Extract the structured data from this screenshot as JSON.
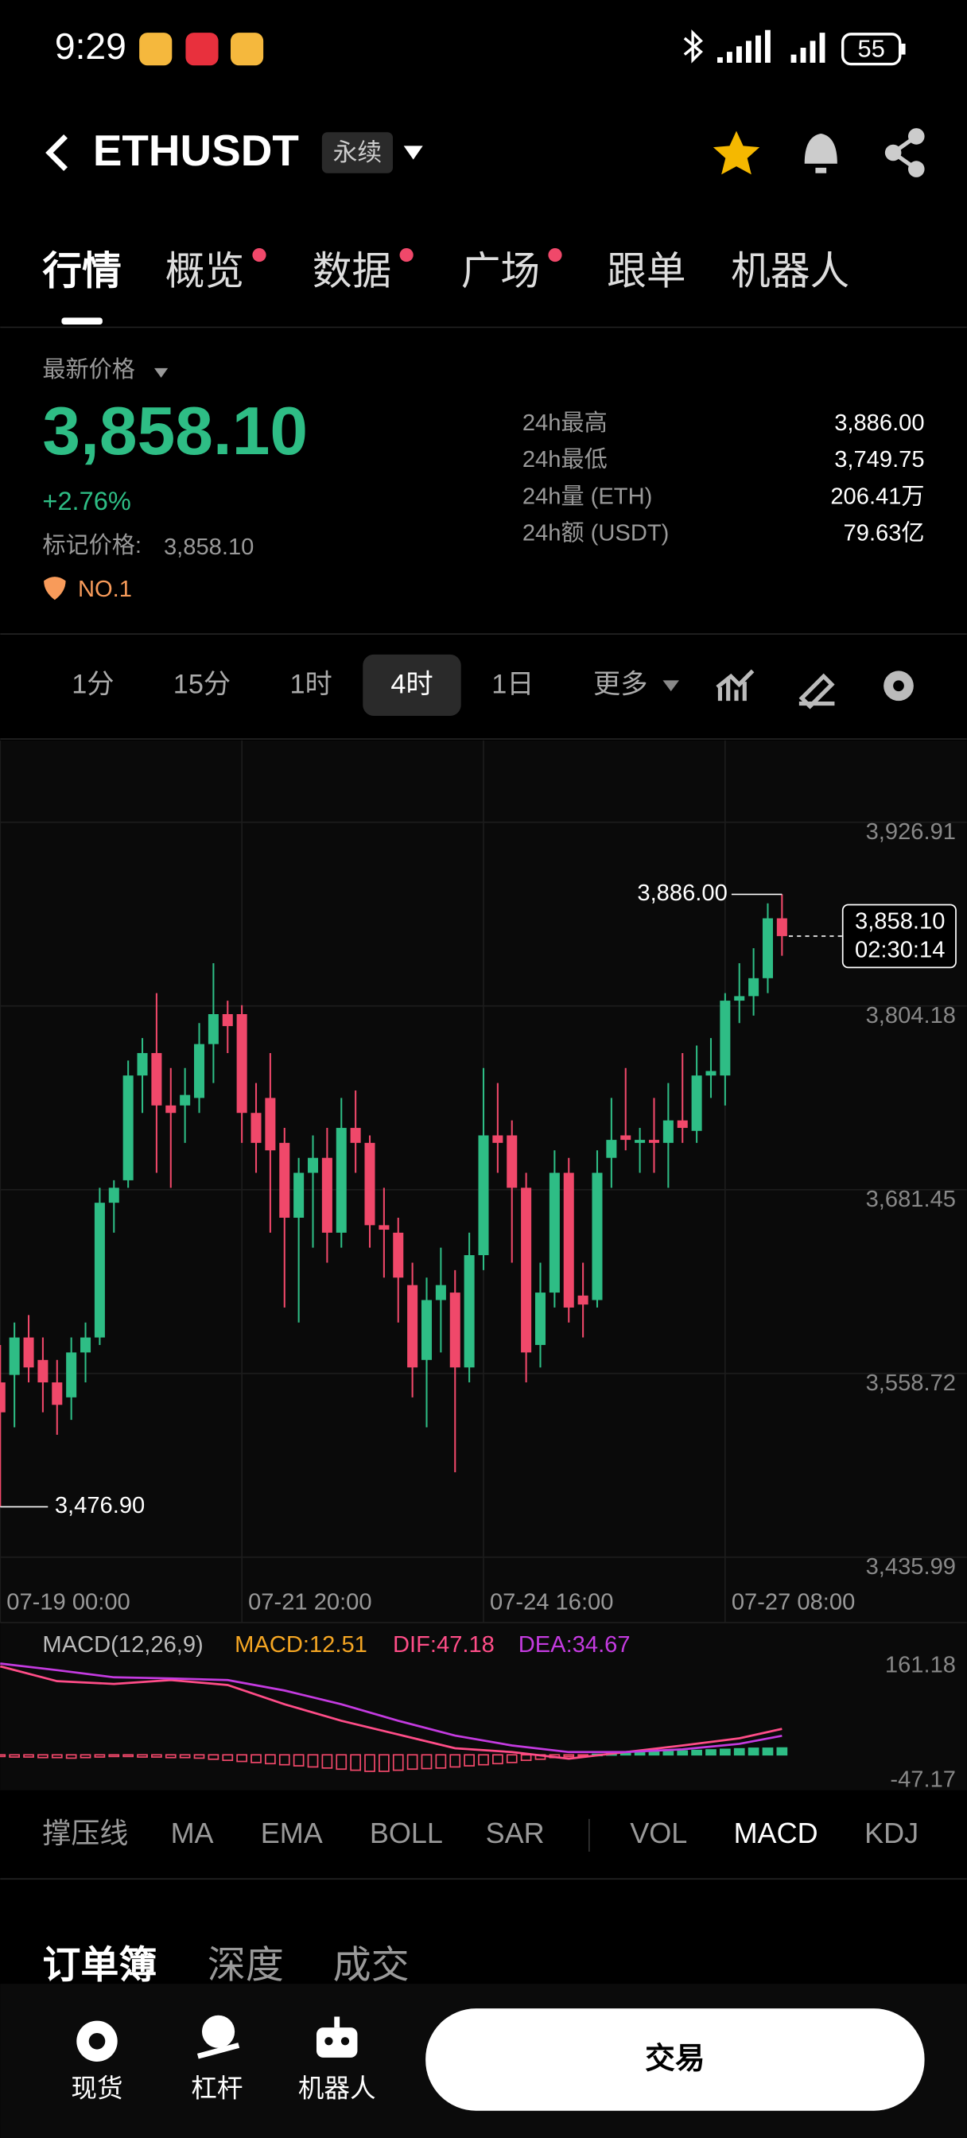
{
  "status_bar": {
    "time": "9:29",
    "battery": "55"
  },
  "header": {
    "symbol": "ETHUSDT",
    "contract_type": "永续"
  },
  "tabs": {
    "items": [
      "行情",
      "概览",
      "数据",
      "广场",
      "跟单",
      "机器人"
    ],
    "active": 0
  },
  "price_panel": {
    "label": "最新价格",
    "last_price": "3,858.10",
    "change": "+2.76%",
    "mark_price_label": "标记价格:",
    "mark_price": "3,858.10",
    "rank": "NO.1",
    "stats": [
      {
        "label": "24h最高",
        "value": "3,886.00"
      },
      {
        "label": "24h最低",
        "value": "3,749.75"
      },
      {
        "label": "24h量 (ETH)",
        "value": "206.41万"
      },
      {
        "label": "24h额 (USDT)",
        "value": "79.63亿"
      }
    ]
  },
  "intervals": {
    "items": [
      "1分",
      "15分",
      "1时",
      "4时",
      "1日",
      "更多"
    ],
    "active": 3
  },
  "chart_data": [
    {
      "type": "candlestick",
      "up_color": "#2ebd85",
      "down_color": "#f0486a",
      "grid": true,
      "open": [
        3560,
        3565,
        3590,
        3575,
        3560,
        3550,
        3580,
        3590,
        3680,
        3695,
        3765,
        3780,
        3745,
        3745,
        3750,
        3786,
        3806,
        3806,
        3740,
        3750,
        3720,
        3670,
        3700,
        3710,
        3660,
        3730,
        3720,
        3665,
        3660,
        3625,
        3575,
        3615,
        3620,
        3570,
        3645,
        3725,
        3725,
        3690,
        3585,
        3620,
        3700,
        3618,
        3615,
        3710,
        3725,
        3720,
        3722,
        3720,
        3735,
        3728,
        3765,
        3765,
        3815,
        3818,
        3830,
        3870
      ],
      "high": [
        3585,
        3600,
        3605,
        3590,
        3575,
        3590,
        3600,
        3690,
        3695,
        3775,
        3790,
        3820,
        3770,
        3770,
        3800,
        3840,
        3815,
        3812,
        3760,
        3780,
        3730,
        3710,
        3725,
        3730,
        3750,
        3755,
        3725,
        3690,
        3670,
        3640,
        3630,
        3650,
        3635,
        3660,
        3770,
        3760,
        3735,
        3700,
        3640,
        3715,
        3710,
        3640,
        3715,
        3750,
        3770,
        3730,
        3750,
        3760,
        3780,
        3785,
        3790,
        3820,
        3840,
        3850,
        3880,
        3886
      ],
      "low": [
        3476.9,
        3530,
        3560,
        3540,
        3525,
        3535,
        3560,
        3585,
        3660,
        3690,
        3740,
        3700,
        3690,
        3720,
        3740,
        3760,
        3780,
        3720,
        3700,
        3660,
        3610,
        3600,
        3650,
        3640,
        3650,
        3700,
        3650,
        3630,
        3600,
        3550,
        3530,
        3580,
        3500,
        3560,
        3635,
        3700,
        3640,
        3560,
        3570,
        3610,
        3600,
        3590,
        3610,
        3690,
        3715,
        3700,
        3700,
        3690,
        3720,
        3720,
        3750,
        3745,
        3800,
        3805,
        3820,
        3845
      ],
      "close": [
        3540,
        3590,
        3570,
        3560,
        3545,
        3580,
        3590,
        3680,
        3690,
        3765,
        3780,
        3745,
        3740,
        3752,
        3786,
        3806,
        3798,
        3740,
        3720,
        3715,
        3670,
        3700,
        3710,
        3660,
        3730,
        3720,
        3665,
        3662,
        3630,
        3570,
        3615,
        3625,
        3570,
        3645,
        3725,
        3720,
        3690,
        3580,
        3620,
        3700,
        3610,
        3612,
        3700,
        3722,
        3722,
        3722,
        3720,
        3735,
        3730,
        3765,
        3768,
        3815,
        3818,
        3830,
        3870,
        3858.1
      ],
      "xlim": [
        0,
        68
      ],
      "xticks": [
        {
          "value": 0,
          "label": "07-19 00:00"
        },
        {
          "value": 17,
          "label": "07-21 20:00"
        },
        {
          "value": 34,
          "label": "07-24 16:00"
        },
        {
          "value": 51,
          "label": "07-27 08:00"
        }
      ],
      "ylim": [
        3435.99,
        3926.91
      ],
      "yticks": [
        {
          "value": 3435.99,
          "label": "3,435.99"
        },
        {
          "value": 3558.72,
          "label": "3,558.72"
        },
        {
          "value": 3681.45,
          "label": "3,681.45"
        },
        {
          "value": 3804.18,
          "label": "3,804.18"
        },
        {
          "value": 3926.91,
          "label": "3,926.91"
        }
      ],
      "annotations": {
        "high_label": "3,886.00",
        "low_label": "3,476.90",
        "last_price_label": "3,858.10",
        "countdown": "02:30:14"
      }
    },
    {
      "type": "macd",
      "title": "MACD(12,26,9)",
      "xlim": [
        0,
        68
      ],
      "ylim": [
        -47.17,
        161.18
      ],
      "yticks": [
        -47.17,
        161.18
      ],
      "series": [
        {
          "label": "MACD:12.51",
          "color": "#f5a623",
          "up_color": "#2ebd85",
          "down_color": "#f0486a",
          "values": [
            -3,
            -4,
            -4,
            -5,
            -5,
            -6,
            -5,
            -4,
            -3,
            -3,
            -4,
            -4,
            -5,
            -5,
            -6,
            -8,
            -10,
            -12,
            -14,
            -16,
            -18,
            -20,
            -22,
            -24,
            -26,
            -28,
            -30,
            -30,
            -28,
            -26,
            -25,
            -24,
            -22,
            -20,
            -18,
            -16,
            -14,
            -10,
            -8,
            -5,
            -3,
            -1,
            1,
            2,
            3,
            4,
            5,
            6,
            7,
            8,
            9,
            10,
            11,
            12,
            12,
            12.51
          ]
        },
        {
          "label": "DIF:47.18",
          "color": "#ff4d88",
          "x": [
            0,
            4,
            8,
            12,
            16,
            20,
            24,
            28,
            32,
            36,
            40,
            44,
            48,
            52,
            55
          ],
          "values": [
            161,
            134,
            129,
            136,
            127,
            92,
            62,
            37,
            12,
            5,
            -7,
            5,
            17,
            30,
            47.18
          ]
        },
        {
          "label": "DEA:34.67",
          "color": "#c43be0",
          "x": [
            0,
            4,
            8,
            12,
            16,
            20,
            24,
            28,
            32,
            36,
            40,
            44,
            48,
            52,
            55
          ],
          "values": [
            166,
            154,
            141,
            139,
            136,
            117,
            92,
            62,
            35,
            17,
            5,
            5,
            10,
            20,
            34.67
          ]
        }
      ]
    }
  ],
  "indicators": {
    "items": [
      "撑压线",
      "MA",
      "EMA",
      "BOLL",
      "SAR",
      "VOL",
      "MACD",
      "KDJ"
    ],
    "active": 6
  },
  "orderbook_tabs": [
    "订单簿",
    "深度",
    "成交"
  ],
  "bottom_nav": {
    "items": [
      "现货",
      "杠杆",
      "机器人"
    ],
    "trade_button": "交易"
  }
}
